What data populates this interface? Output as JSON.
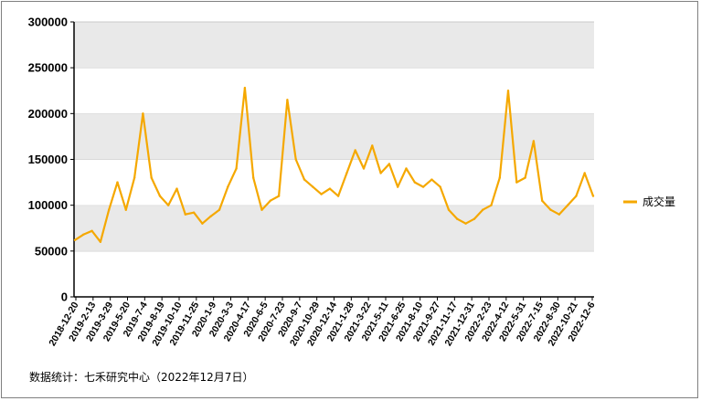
{
  "chart_data": {
    "type": "line",
    "ylim": [
      0,
      300000
    ],
    "y_ticks": [
      "0",
      "50000",
      "100000",
      "150000",
      "200000",
      "250000",
      "300000"
    ],
    "y_tick_values": [
      0,
      50000,
      100000,
      150000,
      200000,
      250000,
      300000
    ],
    "grid": "horizontal-bands",
    "legend_position": "right",
    "series": [
      {
        "name": "成交量",
        "color": "#F5A800",
        "x": [
          "2018-12-20",
          "2019-1-10",
          "2019-1-31",
          "2019-2-13",
          "2019-3-7",
          "2019-3-29",
          "2019-4-18",
          "2019-5-20",
          "2019-6-10",
          "2019-7-4",
          "2019-7-25",
          "2019-8-19",
          "2019-9-12",
          "2019-10-10",
          "2019-10-31",
          "2019-11-25",
          "2019-12-16",
          "2020-1-9",
          "2020-2-10",
          "2020-3-3",
          "2020-3-20",
          "2020-4-17",
          "2020-5-15",
          "2020-6-5",
          "2020-6-29",
          "2020-7-23",
          "2020-8-14",
          "2020-9-7",
          "2020-9-30",
          "2020-10-29",
          "2020-11-20",
          "2020-12-14",
          "2021-1-6",
          "2021-1-28",
          "2021-2-26",
          "2021-3-22",
          "2021-4-14",
          "2021-5-11",
          "2021-6-3",
          "2021-6-25",
          "2021-7-16",
          "2021-8-10",
          "2021-9-2",
          "2021-9-27",
          "2021-10-22",
          "2021-11-17",
          "2021-12-8",
          "2021-12-31",
          "2022-1-24",
          "2022-2-23",
          "2022-3-17",
          "2022-4-12",
          "2022-5-6",
          "2022-5-31",
          "2022-6-22",
          "2022-7-15",
          "2022-8-8",
          "2022-8-30",
          "2022-9-26",
          "2022-10-21",
          "2022-11-14",
          "2022-12-6"
        ],
        "values": [
          62000,
          68000,
          72000,
          60000,
          95000,
          125000,
          95000,
          130000,
          200000,
          130000,
          110000,
          100000,
          118000,
          90000,
          92000,
          80000,
          88000,
          95000,
          120000,
          140000,
          228000,
          130000,
          95000,
          105000,
          110000,
          215000,
          150000,
          128000,
          120000,
          112000,
          118000,
          110000,
          135000,
          160000,
          140000,
          165000,
          135000,
          145000,
          120000,
          140000,
          125000,
          120000,
          128000,
          120000,
          95000,
          85000,
          80000,
          85000,
          95000,
          100000,
          130000,
          225000,
          125000,
          130000,
          170000,
          105000,
          95000,
          90000,
          100000,
          110000,
          135000,
          110000
        ]
      }
    ],
    "x_tick_labels": [
      "2018-12-20",
      "2019-2-13",
      "2019-3-29",
      "2019-5-20",
      "2019-7-4",
      "2019-8-19",
      "2019-10-10",
      "2019-11-25",
      "2020-1-9",
      "2020-3-3",
      "2020-4-17",
      "2020-6-5",
      "2020-7-23",
      "2020-9-7",
      "2020-10-29",
      "2020-12-14",
      "2021-1-28",
      "2021-3-22",
      "2021-5-11",
      "2021-6-25",
      "2021-8-10",
      "2021-9-27",
      "2021-11-17",
      "2021-12-31",
      "2022-2-23",
      "2022-4-12",
      "2022-5-31",
      "2022-7-15",
      "2022-8-30",
      "2022-10-21",
      "2022-12-6"
    ]
  },
  "source_note": "数据统计：七禾研究中心（2022年12月7日）"
}
